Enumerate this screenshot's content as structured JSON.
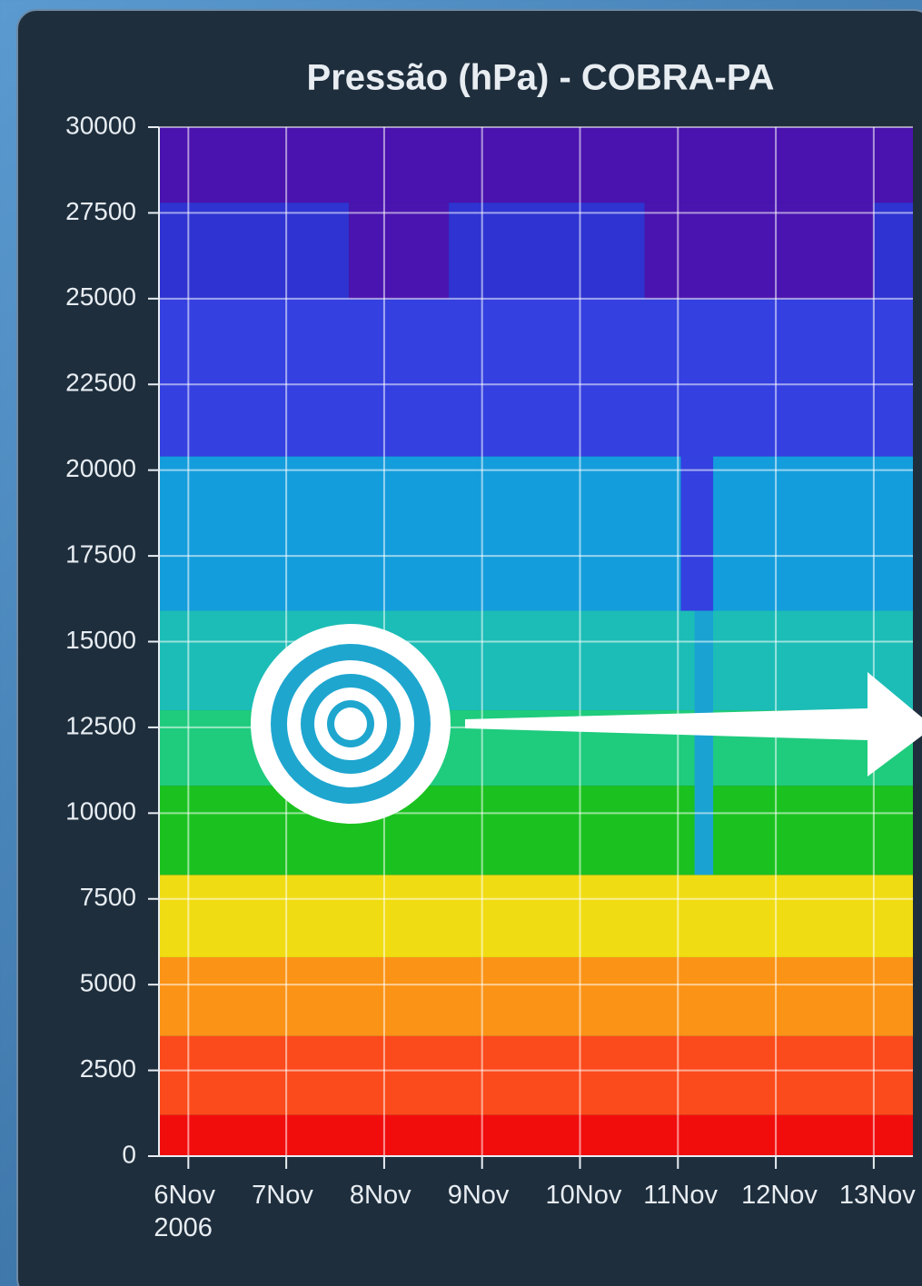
{
  "chart_data": {
    "type": "heatmap",
    "title": "Pressão (hPa) - COBRA-PA",
    "xlim": [
      -0.3,
      7.4
    ],
    "xticks": [
      {
        "value": 0,
        "label": "6Nov\n2006"
      },
      {
        "value": 1,
        "label": "7Nov"
      },
      {
        "value": 2,
        "label": "8Nov"
      },
      {
        "value": 3,
        "label": "9Nov"
      },
      {
        "value": 4,
        "label": "10Nov"
      },
      {
        "value": 5,
        "label": "11Nov"
      },
      {
        "value": 6,
        "label": "12Nov"
      },
      {
        "value": 7,
        "label": "13Nov"
      }
    ],
    "ylim": [
      0,
      30000
    ],
    "yticks": [
      0,
      2500,
      5000,
      7500,
      10000,
      12500,
      15000,
      17500,
      20000,
      22500,
      25000,
      27500,
      30000
    ],
    "grid": true,
    "cells": [
      {
        "x0": -0.3,
        "x1": 7.4,
        "y0": 0,
        "y1": 1200,
        "color": "#f20d0d"
      },
      {
        "x0": -0.3,
        "x1": 7.4,
        "y0": 1200,
        "y1": 3500,
        "color": "#fb4a1c"
      },
      {
        "x0": -0.3,
        "x1": 7.4,
        "y0": 3500,
        "y1": 5800,
        "color": "#fb9316"
      },
      {
        "x0": -0.3,
        "x1": 7.4,
        "y0": 5800,
        "y1": 8200,
        "color": "#f0dc12"
      },
      {
        "x0": -0.3,
        "x1": 7.4,
        "y0": 8200,
        "y1": 10800,
        "color": "#1bc21f"
      },
      {
        "x0": -0.3,
        "x1": 7.4,
        "y0": 10800,
        "y1": 13000,
        "color": "#1fcb7d"
      },
      {
        "x0": -0.3,
        "x1": 7.4,
        "y0": 13000,
        "y1": 15900,
        "color": "#1cbdb6"
      },
      {
        "x0": -0.3,
        "x1": 7.4,
        "y0": 15900,
        "y1": 20400,
        "color": "#149ddc"
      },
      {
        "x0": -0.3,
        "x1": 7.4,
        "y0": 20400,
        "y1": 25000,
        "color": "#3440e0"
      },
      {
        "x0": -0.3,
        "x1": 1.64,
        "y0": 25000,
        "y1": 27800,
        "color": "#2e33d2"
      },
      {
        "x0": 1.64,
        "x1": 2.66,
        "y0": 25000,
        "y1": 27800,
        "color": "#4a14b0"
      },
      {
        "x0": 2.66,
        "x1": 4.66,
        "y0": 25000,
        "y1": 27800,
        "color": "#2e33d2"
      },
      {
        "x0": 4.66,
        "x1": 7.0,
        "y0": 25000,
        "y1": 27800,
        "color": "#4a14b0"
      },
      {
        "x0": 7.0,
        "x1": 7.4,
        "y0": 25000,
        "y1": 27800,
        "color": "#2e33d2"
      },
      {
        "x0": -0.3,
        "x1": 7.4,
        "y0": 27800,
        "y1": 30000,
        "color": "#4a12ae"
      },
      {
        "x0": 5.03,
        "x1": 5.36,
        "y0": 15900,
        "y1": 20400,
        "color": "#3440e0"
      },
      {
        "x0": 5.17,
        "x1": 5.36,
        "y0": 8200,
        "y1": 15900,
        "color": "#1aa3d2"
      }
    ]
  }
}
